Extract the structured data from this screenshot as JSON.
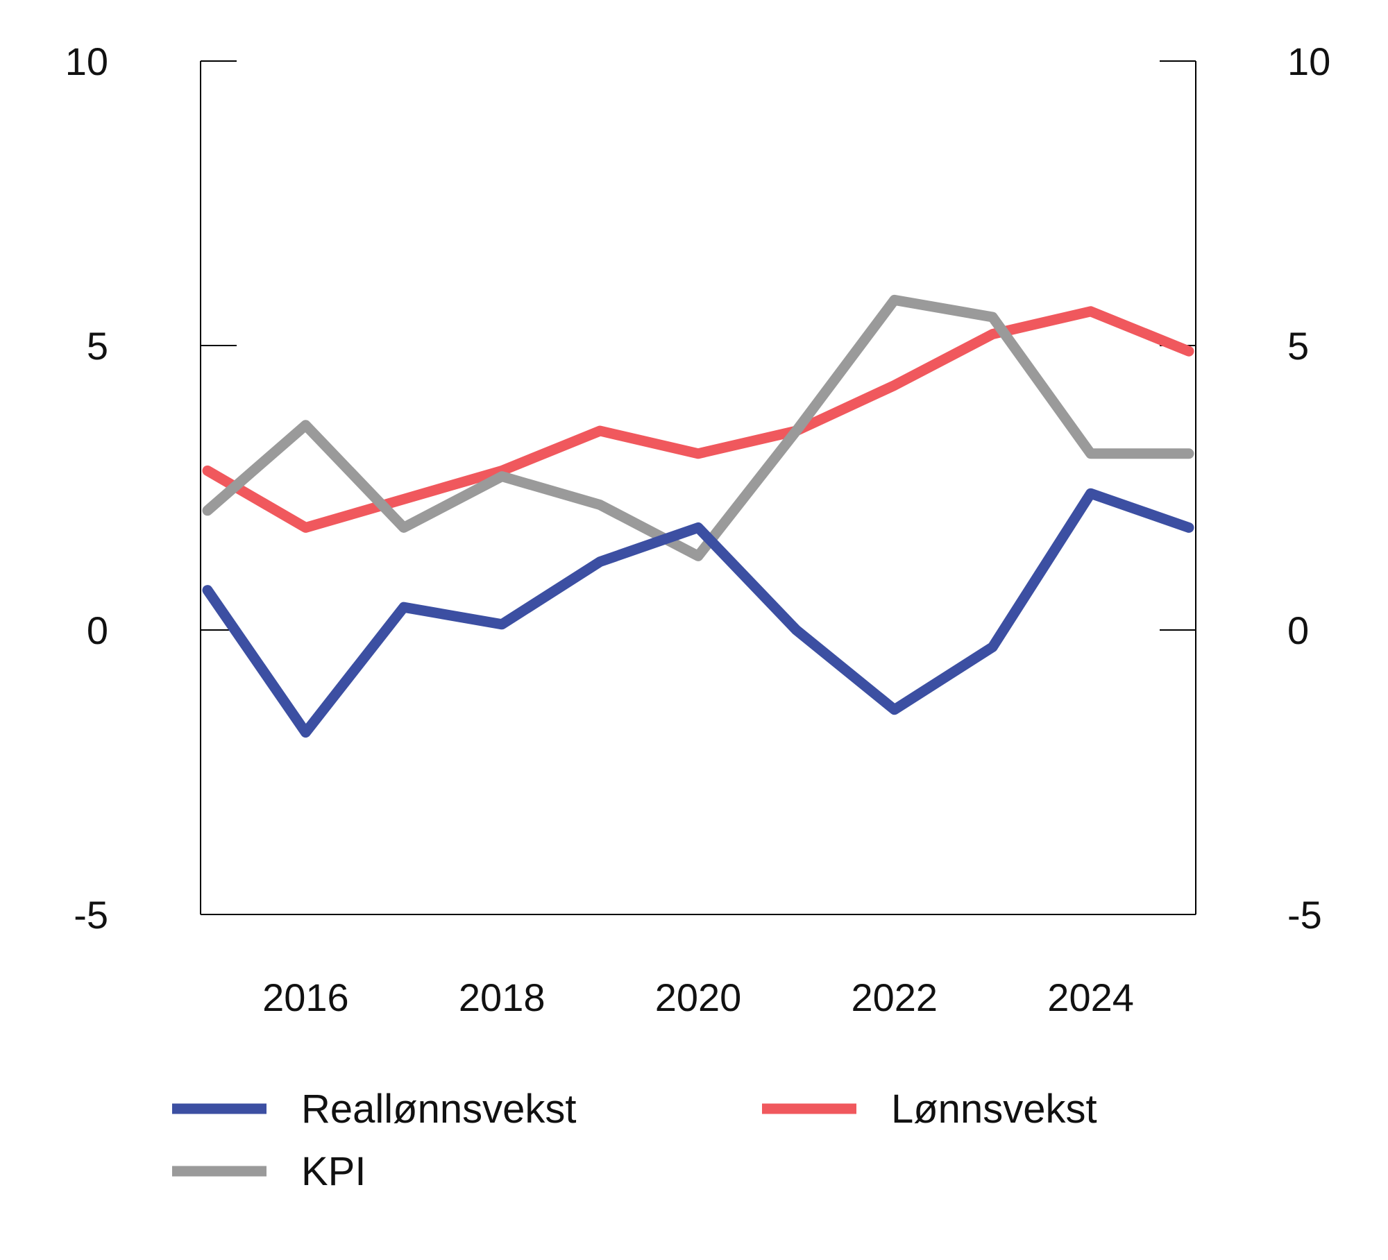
{
  "chart_data": {
    "type": "line",
    "title": "",
    "xlabel": "",
    "ylabel": "",
    "x": [
      2015,
      2016,
      2017,
      2018,
      2019,
      2020,
      2021,
      2022,
      2023,
      2024,
      2025
    ],
    "xlim": [
      2015,
      2025
    ],
    "x_ticks": [
      "2016",
      "2018",
      "2020",
      "2022",
      "2024"
    ],
    "ylim": [
      -5,
      10
    ],
    "y_ticks_left": [
      "10",
      "5",
      "0",
      "-5"
    ],
    "y_ticks_right": [
      "10",
      "5",
      "0",
      "-5"
    ],
    "grid": false,
    "legend": "bottom",
    "series": [
      {
        "name": "Reallønnsvekst",
        "color": "#3c4fa2",
        "values": [
          0.7,
          -1.8,
          0.4,
          0.1,
          1.2,
          1.8,
          0.0,
          -1.4,
          -0.3,
          2.4,
          1.8
        ]
      },
      {
        "name": "Lønnsvekst",
        "color": "#f0585d",
        "values": [
          2.8,
          1.8,
          2.3,
          2.8,
          3.5,
          3.1,
          3.5,
          4.3,
          5.2,
          5.6,
          4.9
        ]
      },
      {
        "name": "KPI",
        "color": "#9a9a9a",
        "values": [
          2.1,
          3.6,
          1.8,
          2.7,
          2.2,
          1.3,
          3.5,
          5.8,
          5.5,
          3.1,
          3.1
        ]
      }
    ],
    "legend_order": [
      0,
      1,
      2
    ]
  }
}
